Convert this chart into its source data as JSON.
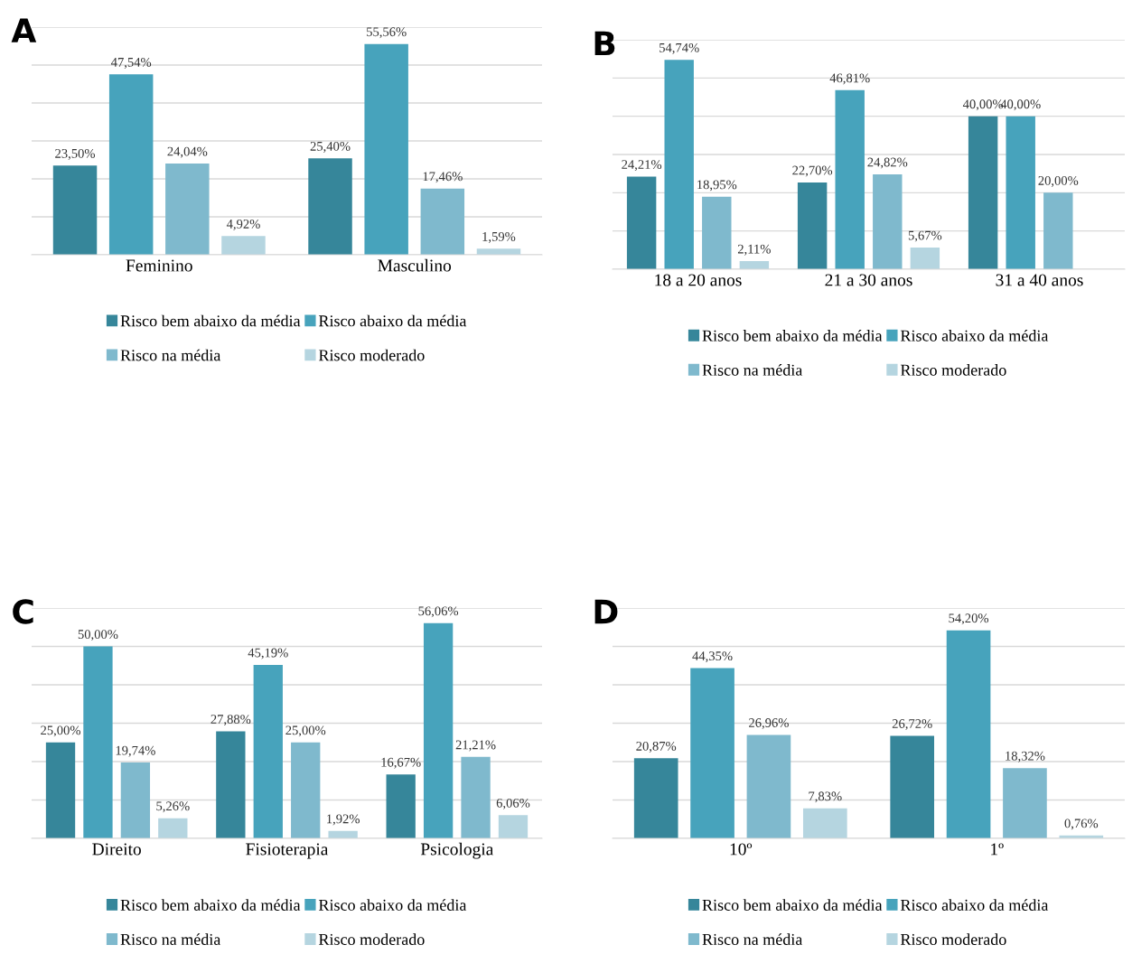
{
  "chart_data": [
    {
      "type": "bar",
      "title": "A",
      "categories": [
        "Feminino",
        "Masculino"
      ],
      "ylim": [
        0,
        60
      ],
      "yticks": [
        {
          "value": 0,
          "label": null
        },
        {
          "value": 10,
          "label": null
        },
        {
          "value": 20,
          "label": null
        },
        {
          "value": 30,
          "label": null
        },
        {
          "value": 40,
          "label": null
        },
        {
          "value": 50,
          "label": null
        },
        {
          "value": 60,
          "label": null
        }
      ],
      "grid": "y",
      "legend": "bottom",
      "tick_labels": "x",
      "series": [
        {
          "name": "Risco bem abaixo da média",
          "color": "#36869a",
          "values": [
            23.5,
            25.4
          ],
          "value_labels": [
            "23,50%",
            "25,40%"
          ]
        },
        {
          "name": "Risco abaixo da média",
          "color": "#47a3bc",
          "values": [
            47.54,
            55.56
          ],
          "value_labels": [
            "47,54%",
            "55,56%"
          ]
        },
        {
          "name": "Risco na média",
          "color": "#7fb9cd",
          "values": [
            24.04,
            17.46
          ],
          "value_labels": [
            "24,04%",
            "17,46%"
          ]
        },
        {
          "name": "Risco moderado",
          "color": "#b5d5e0",
          "values": [
            4.92,
            1.59
          ],
          "value_labels": [
            "4,92%",
            "1,59%"
          ]
        }
      ]
    },
    {
      "type": "bar",
      "title": "B",
      "categories": [
        "18 a 20 anos",
        "21 a 30 anos",
        "31 a 40 anos"
      ],
      "ylim": [
        0,
        60
      ],
      "yticks": [
        {
          "value": 0,
          "label": null
        },
        {
          "value": 10,
          "label": null
        },
        {
          "value": 20,
          "label": null
        },
        {
          "value": 30,
          "label": null
        },
        {
          "value": 40,
          "label": null
        },
        {
          "value": 50,
          "label": null
        },
        {
          "value": 60,
          "label": null
        }
      ],
      "grid": "y",
      "legend": "bottom",
      "tick_labels": "x",
      "series": [
        {
          "name": "Risco bem abaixo da média",
          "color": "#36869a",
          "values": [
            24.21,
            22.7,
            40.0
          ],
          "value_labels": [
            "24,21%",
            "22,70%",
            "40,00%"
          ]
        },
        {
          "name": "Risco abaixo da média",
          "color": "#47a3bc",
          "values": [
            54.74,
            46.81,
            40.0
          ],
          "value_labels": [
            "54,74%",
            "46,81%",
            "40,00%"
          ]
        },
        {
          "name": "Risco na média",
          "color": "#7fb9cd",
          "values": [
            18.95,
            24.82,
            20.0
          ],
          "value_labels": [
            "18,95%",
            "24,82%",
            "20,00%"
          ]
        },
        {
          "name": "Risco moderado",
          "color": "#b5d5e0",
          "values": [
            2.11,
            5.67,
            null
          ],
          "value_labels": [
            "2,11%",
            "5,67%",
            null
          ]
        }
      ]
    },
    {
      "type": "bar",
      "title": "C",
      "categories": [
        "Direito",
        "Fisioterapia",
        "Psicologia"
      ],
      "ylim": [
        0,
        60
      ],
      "yticks": [
        {
          "value": 0,
          "label": null
        },
        {
          "value": 10,
          "label": null
        },
        {
          "value": 20,
          "label": null
        },
        {
          "value": 30,
          "label": null
        },
        {
          "value": 40,
          "label": null
        },
        {
          "value": 50,
          "label": null
        },
        {
          "value": 60,
          "label": null
        }
      ],
      "grid": "y",
      "legend": "bottom",
      "tick_labels": "x",
      "series": [
        {
          "name": "Risco bem abaixo da média",
          "color": "#36869a",
          "values": [
            25.0,
            27.88,
            16.67
          ],
          "value_labels": [
            "25,00%",
            "27,88%",
            "16,67%"
          ]
        },
        {
          "name": "Risco abaixo da média",
          "color": "#47a3bc",
          "values": [
            50.0,
            45.19,
            56.06
          ],
          "value_labels": [
            "50,00%",
            "45,19%",
            "56,06%"
          ]
        },
        {
          "name": "Risco na média",
          "color": "#7fb9cd",
          "values": [
            19.74,
            25.0,
            21.21
          ],
          "value_labels": [
            "19,74%",
            "25,00%",
            "21,21%"
          ]
        },
        {
          "name": "Risco moderado",
          "color": "#b5d5e0",
          "values": [
            5.26,
            1.92,
            6.06
          ],
          "value_labels": [
            "5,26%",
            "1,92%",
            "6,06%"
          ]
        }
      ]
    },
    {
      "type": "bar",
      "title": "D",
      "categories": [
        "10º",
        "1º"
      ],
      "ylim": [
        0,
        60
      ],
      "yticks": [
        {
          "value": 0,
          "label": null
        },
        {
          "value": 10,
          "label": null
        },
        {
          "value": 20,
          "label": null
        },
        {
          "value": 30,
          "label": null
        },
        {
          "value": 40,
          "label": null
        },
        {
          "value": 50,
          "label": null
        },
        {
          "value": 60,
          "label": null
        }
      ],
      "grid": "y",
      "legend": "bottom",
      "tick_labels": "x",
      "series": [
        {
          "name": "Risco bem abaixo da média",
          "color": "#36869a",
          "values": [
            20.87,
            26.72
          ],
          "value_labels": [
            "20,87%",
            "26,72%"
          ]
        },
        {
          "name": "Risco abaixo da média",
          "color": "#47a3bc",
          "values": [
            44.35,
            54.2
          ],
          "value_labels": [
            "44,35%",
            "54,20%"
          ]
        },
        {
          "name": "Risco na média",
          "color": "#7fb9cd",
          "values": [
            26.96,
            18.32
          ],
          "value_labels": [
            "26,96%",
            "18,32%"
          ]
        },
        {
          "name": "Risco moderado",
          "color": "#b5d5e0",
          "values": [
            7.83,
            0.76
          ],
          "value_labels": [
            "7,83%",
            "0,76%"
          ]
        }
      ]
    }
  ]
}
